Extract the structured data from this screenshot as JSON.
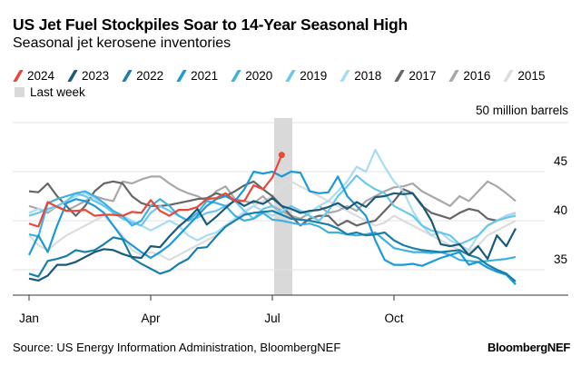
{
  "title": "US Jet Fuel Stockpiles Soar to 14-Year Seasonal High",
  "subtitle": "Seasonal jet kerosene inventories",
  "source": "Source: US Energy Information Administration, BloombergNEF",
  "brand": "BloombergNEF",
  "chart_data": {
    "type": "line",
    "title": "US Jet Fuel Stockpiles Soar to 14-Year Seasonal High",
    "subtitle": "Seasonal jet kerosene inventories",
    "ylabel": "50 million barrels",
    "unit_label": "50 million barrels",
    "x_unit": "week of year",
    "x_ticks": [
      "Jan",
      "Apr",
      "Jul",
      "Oct"
    ],
    "y_ticks": [
      35,
      40,
      45
    ],
    "ylim": [
      32.5,
      50
    ],
    "grid": true,
    "legend_placement": "top",
    "highlight": {
      "label": "Last week",
      "color": "#d9d9d9"
    },
    "series": [
      {
        "name": "2015",
        "color": "#dcdcdc",
        "values": [
          38.5,
          37.5,
          37.0,
          37.8,
          38.5,
          39.0,
          39.5,
          40.0,
          40.5,
          39.5,
          38.5,
          37.0,
          36.5,
          36.8,
          36.5,
          36.0,
          36.5,
          37.0,
          37.5,
          38.0,
          38.5,
          39.5,
          40.0,
          41.0,
          41.5,
          42.0,
          42.5,
          43.5,
          44.0,
          43.5,
          43.0,
          42.5,
          42.0,
          41.5,
          41.0,
          40.5,
          40.0,
          39.5,
          39.8,
          40.5,
          40.0,
          39.5,
          39.0,
          38.5,
          38.0,
          37.5,
          37.0,
          36.8,
          37.5,
          38.5,
          39.0,
          39.5,
          40.0
        ]
      },
      {
        "name": "2016",
        "color": "#a8a8a8",
        "values": [
          41.5,
          41.2,
          40.8,
          41.5,
          41.0,
          41.5,
          42.0,
          42.5,
          42.2,
          42.0,
          44.0,
          43.8,
          44.2,
          44.5,
          44.5,
          43.8,
          43.2,
          42.8,
          42.5,
          42.0,
          43.0,
          43.5,
          42.2,
          42.0,
          41.8,
          42.5,
          41.5,
          41.0,
          40.5,
          40.2,
          40.8,
          41.5,
          40.8,
          41.0,
          41.5,
          41.0,
          42.0,
          42.5,
          43.0,
          43.4,
          43.5,
          43.8,
          43.0,
          42.5,
          42.0,
          41.5,
          42.5,
          42.0,
          43.0,
          44.0,
          43.5,
          42.8,
          42.0
        ]
      },
      {
        "name": "2017",
        "color": "#666666",
        "values": [
          43.0,
          42.9,
          43.8,
          42.5,
          41.5,
          40.5,
          41.5,
          43.0,
          43.8,
          44.0,
          43.8,
          42.5,
          41.8,
          41.5,
          41.5,
          41.6,
          41.8,
          42.0,
          42.2,
          42.3,
          42.8,
          42.5,
          43.0,
          43.6,
          44.0,
          43.2,
          42.5,
          41.5,
          40.5,
          39.5,
          40.2,
          40.5,
          40.5,
          39.5,
          40.0,
          39.5,
          39.8,
          40.0,
          41.0,
          42.0,
          43.2,
          42.8,
          41.5,
          40.8,
          40.5,
          40.2,
          40.8,
          41.2,
          41.0,
          40.2,
          40.0,
          40.5,
          40.8
        ]
      },
      {
        "name": "2018",
        "color": "#a8dcf3",
        "values": [
          40.8,
          41.2,
          41.0,
          41.5,
          42.0,
          42.5,
          42.8,
          42.3,
          41.5,
          41.0,
          40.5,
          40.0,
          39.5,
          39.0,
          39.5,
          40.0,
          39.5,
          38.5,
          38.0,
          38.5,
          38.8,
          39.5,
          40.2,
          40.8,
          41.5,
          41.0,
          40.5,
          41.0,
          41.5,
          41.0,
          40.8,
          41.5,
          42.0,
          43.0,
          44.0,
          45.5,
          45.0,
          47.2,
          45.5,
          44.0,
          43.0,
          41.0,
          39.5,
          38.5,
          38.8,
          38.0,
          37.5,
          37.0,
          38.5,
          39.5,
          40.0,
          40.5,
          40.8
        ]
      },
      {
        "name": "2019",
        "color": "#6cc6ec",
        "values": [
          40.5,
          40.8,
          41.2,
          41.5,
          42.0,
          42.8,
          42.5,
          42.0,
          41.5,
          40.8,
          40.2,
          39.8,
          39.5,
          40.8,
          41.5,
          41.0,
          40.5,
          40.0,
          40.3,
          40.8,
          41.0,
          41.5,
          42.0,
          41.0,
          40.2,
          41.2,
          41.5,
          40.8,
          41.5,
          41.0,
          40.5,
          40.0,
          41.0,
          42.5,
          43.5,
          44.6,
          43.8,
          43.2,
          42.8,
          41.5,
          41.0,
          40.5,
          39.5,
          39.0,
          38.8,
          38.5,
          37.6,
          38.0,
          38.5,
          39.5,
          40.0,
          40.3,
          40.5
        ]
      },
      {
        "name": "2020",
        "color": "#3fb1e0",
        "values": [
          38.6,
          38.4,
          41.8,
          42.2,
          42.5,
          42.8,
          43.0,
          42.5,
          41.8,
          41.0,
          40.5,
          39.5,
          40.0,
          41.5,
          42.2,
          41.5,
          40.5,
          40.0,
          40.8,
          42.0,
          41.8,
          41.5,
          40.5,
          40.0,
          40.2,
          40.8,
          40.1,
          40.0,
          39.8,
          39.6,
          39.7,
          39.4,
          38.8,
          38.8,
          38.6,
          38.5,
          38.6,
          38.8,
          38.0,
          37.2,
          37.0,
          36.8,
          36.8,
          36.7,
          36.8,
          36.5,
          36.0,
          35.9,
          35.8,
          35.9,
          36.0,
          36.1,
          36.3
        ]
      },
      {
        "name": "2021",
        "color": "#1a9ad8",
        "values": [
          36.5,
          38.5,
          36.8,
          39.5,
          41.8,
          42.2,
          42.0,
          41.5,
          40.8,
          39.5,
          38.2,
          37.5,
          36.8,
          36.2,
          36.8,
          37.5,
          38.5,
          39.5,
          40.5,
          41.5,
          42.2,
          42.5,
          42.0,
          43.2,
          45.0,
          44.8,
          45.0,
          44.5,
          45.0,
          44.9,
          43.0,
          42.8,
          42.9,
          44.5,
          42.5,
          41.5,
          40.5,
          38.0,
          36.0,
          35.5,
          35.5,
          35.6,
          35.4,
          35.8,
          36.2,
          36.5,
          36.8,
          35.5,
          35.8,
          35.2,
          34.8,
          34.5,
          33.5
        ]
      },
      {
        "name": "2022",
        "color": "#1a7fa6",
        "values": [
          34.6,
          34.3,
          35.9,
          36.1,
          36.4,
          37.0,
          36.8,
          37.0,
          37.6,
          38.3,
          38.1,
          36.2,
          35.6,
          35.1,
          34.6,
          34.9,
          35.6,
          36.1,
          37.2,
          37.3,
          38.4,
          39.4,
          40.0,
          40.6,
          40.8,
          40.9,
          41.0,
          40.6,
          40.2,
          40.1,
          40.0,
          39.8,
          39.6,
          39.2,
          38.6,
          38.8,
          38.5,
          38.6,
          38.8,
          38.0,
          37.5,
          37.2,
          37.0,
          36.9,
          36.8,
          36.9,
          37.0,
          36.5,
          36.2,
          35.5,
          35.0,
          34.6,
          33.8
        ]
      },
      {
        "name": "2023",
        "color": "#1a5a78",
        "values": [
          34.1,
          33.9,
          34.4,
          35.5,
          35.5,
          35.8,
          36.3,
          36.8,
          37.1,
          37.0,
          36.6,
          36.3,
          36.2,
          37.4,
          37.3,
          38.4,
          39.4,
          40.2,
          41.2,
          39.6,
          40.4,
          41.3,
          42.1,
          41.5,
          42.0,
          41.7,
          42.3,
          41.5,
          41.2,
          40.8,
          41.0,
          41.1,
          41.4,
          41.8,
          41.2,
          41.9,
          41.4,
          42.4,
          42.5,
          42.8,
          42.7,
          42.8,
          41.6,
          40.0,
          37.6,
          37.4,
          37.6,
          36.5,
          37.4,
          36.1,
          38.5,
          37.4,
          39.2
        ]
      },
      {
        "name": "2024",
        "color": "#e8473a",
        "values": [
          39.7,
          39.4,
          41.9,
          41.4,
          41.0,
          41.0,
          41.1,
          40.5,
          40.6,
          40.6,
          40.5,
          40.9,
          40.8,
          42.1,
          41.0,
          40.5,
          41.1,
          41.1,
          41.4,
          42.2,
          42.3,
          42.8,
          42.0,
          42.0,
          43.6,
          43.2,
          44.4,
          46.7
        ]
      }
    ]
  }
}
